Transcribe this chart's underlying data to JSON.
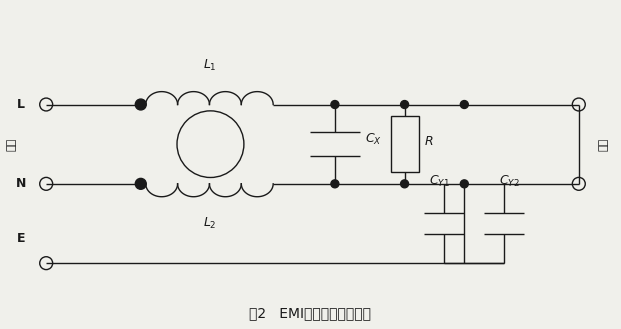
{
  "bg_color": "#f0f0eb",
  "line_color": "#1a1a1a",
  "fig_width": 6.21,
  "fig_height": 3.29,
  "title": "图2   EMI电源滤波网络结构",
  "label_source": "电源",
  "label_load": "负载"
}
